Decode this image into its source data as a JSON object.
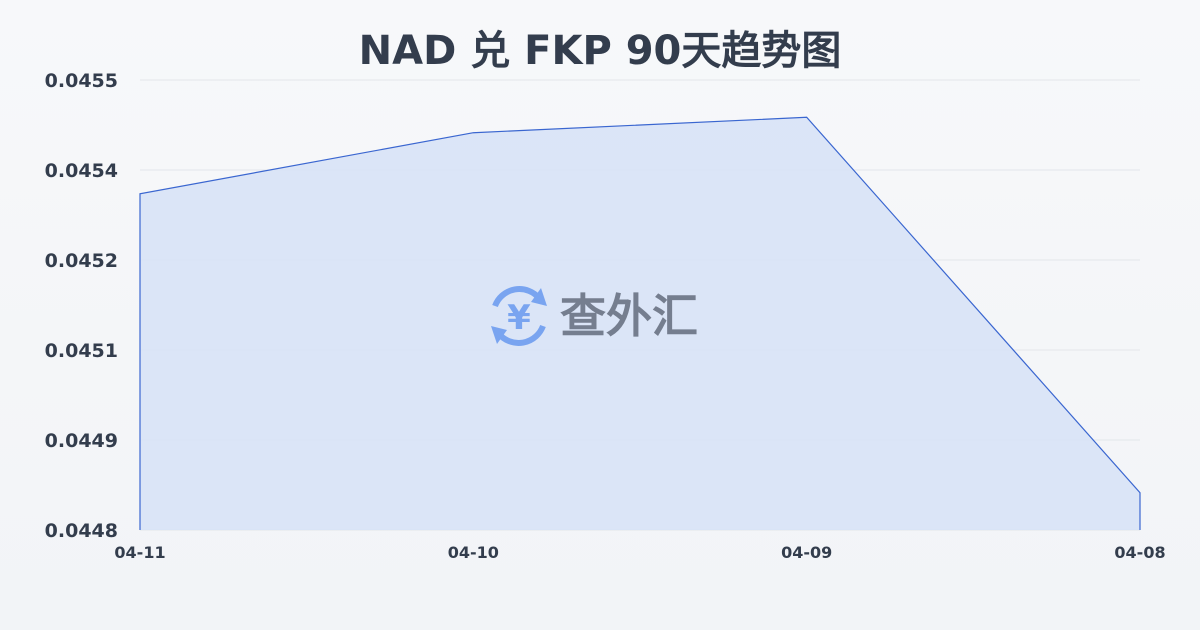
{
  "chart_data": {
    "type": "area",
    "title": "NAD 兑 FKP 90天趋势图",
    "xlabel": "",
    "ylabel": "",
    "categories": [
      "04-11",
      "04-10",
      "04-09",
      "04-08"
    ],
    "values": [
      0.045323,
      0.045418,
      0.045442,
      0.044858
    ],
    "ylim": [
      0.0448,
      0.0455
    ],
    "yticks": [
      0.0448,
      0.04494,
      0.04508,
      0.04522,
      0.04536,
      0.0455
    ],
    "ytick_labels": [
      "0.0448",
      "0.0449",
      "0.0451",
      "0.0452",
      "0.0454",
      "0.0455"
    ],
    "grid": true,
    "colors": {
      "line": "#3a66d0",
      "fill": "#d6e2f7",
      "grid": "#e3e6ea",
      "text": "#333d4d"
    }
  },
  "watermark": {
    "text": "查外汇",
    "icon": "yen-exchange-icon"
  }
}
